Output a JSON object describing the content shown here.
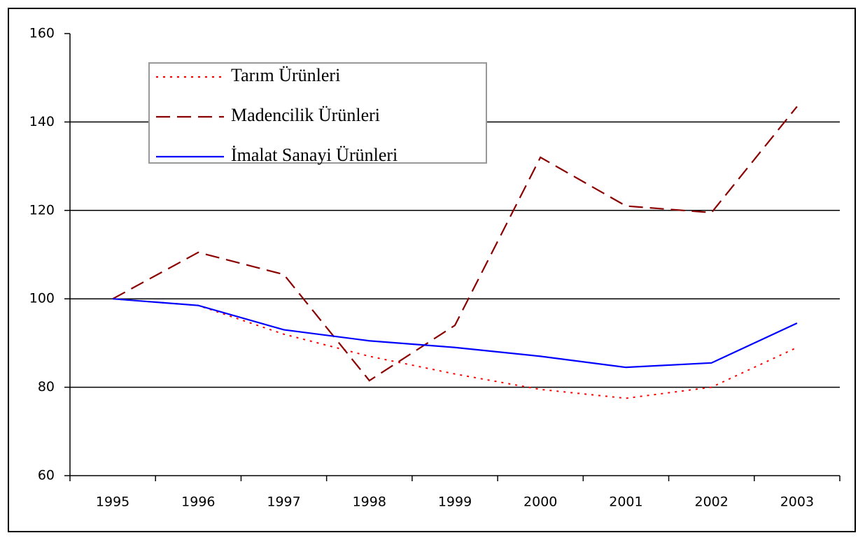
{
  "chart_data": {
    "type": "line",
    "categories": [
      "1995",
      "1996",
      "1997",
      "1998",
      "1999",
      "2000",
      "2001",
      "2002",
      "2003"
    ],
    "series": [
      {
        "name": "Tarım Ürünleri",
        "color": "#ff0000",
        "style": "dotted",
        "values": [
          100,
          98.5,
          92,
          87,
          83,
          79.5,
          77.5,
          80,
          89
        ]
      },
      {
        "name": "Madencilik Ürünleri",
        "color": "#8b0000",
        "style": "dashed",
        "values": [
          100,
          110.5,
          105.5,
          81.5,
          94,
          132,
          121,
          119.5,
          143.5
        ]
      },
      {
        "name": "İmalat Sanayi Ürünleri",
        "color": "#0000ff",
        "style": "solid",
        "values": [
          100,
          98.5,
          93,
          90.5,
          89,
          87,
          84.5,
          85.5,
          94.5
        ]
      }
    ],
    "ylim": [
      60,
      160
    ],
    "yticks": [
      60,
      80,
      100,
      120,
      140,
      160
    ],
    "grid": true,
    "legend": "upper left"
  }
}
